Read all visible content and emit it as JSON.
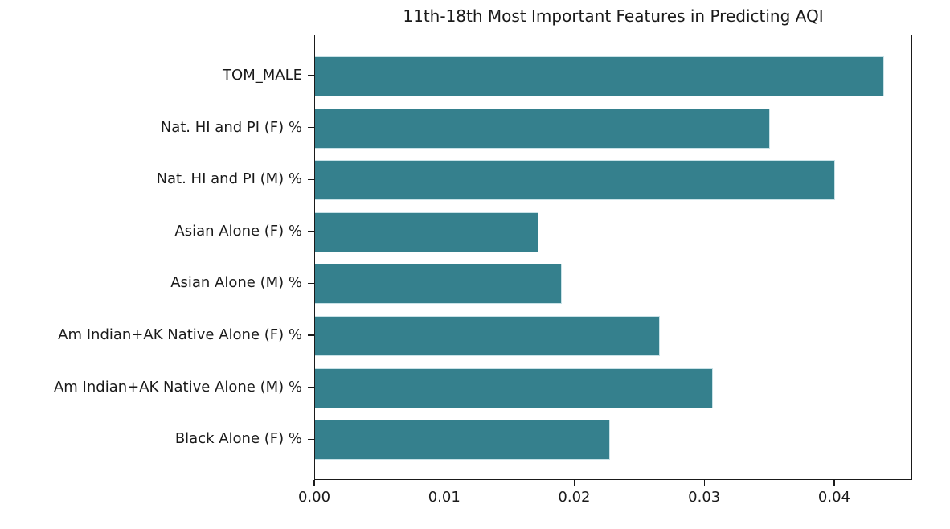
{
  "chart_data": {
    "type": "bar",
    "orientation": "horizontal",
    "title": "11th-18th Most Important Features in Predicting AQI",
    "categories": [
      "TOM_MALE",
      "Nat. HI and PI (F) %",
      "Nat. HI and PI (M) %",
      "Asian Alone (F) %",
      "Asian Alone (M) %",
      "Am Indian+AK Native Alone (F) %",
      "Am Indian+AK Native Alone (M) %",
      "Black Alone (F) %"
    ],
    "values": [
      0.0438,
      0.035,
      0.04,
      0.0172,
      0.019,
      0.0265,
      0.0306,
      0.0227
    ],
    "xlabel": "",
    "ylabel": "",
    "xlim": [
      0,
      0.046
    ],
    "xticks": [
      {
        "value": 0.0,
        "label": "0.00"
      },
      {
        "value": 0.01,
        "label": "0.01"
      },
      {
        "value": 0.02,
        "label": "0.02"
      },
      {
        "value": 0.03,
        "label": "0.03"
      },
      {
        "value": 0.04,
        "label": "0.04"
      }
    ],
    "grid": false,
    "legend": false,
    "colors": {
      "bar_fill": "#35808d",
      "bar_edge": "#c9e2e7",
      "spine": "#1a1a1a",
      "text": "#1a1a1a",
      "background": "#ffffff"
    }
  }
}
